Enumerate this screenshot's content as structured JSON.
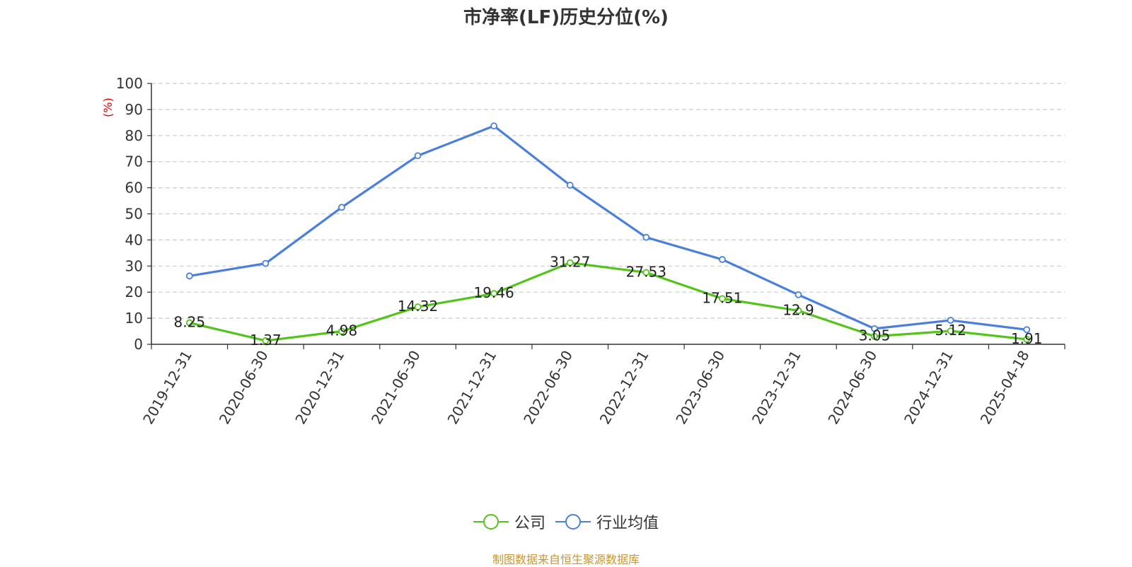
{
  "chart_data": {
    "type": "line",
    "title": "市净率(LF)历史分位(%)",
    "ylabel": "(%)",
    "xlabel": "",
    "ylim": [
      0,
      100
    ],
    "y_ticks": [
      0,
      10,
      20,
      30,
      40,
      50,
      60,
      70,
      80,
      90,
      100
    ],
    "grid": "horizontal-dashed",
    "legend_position": "bottom-center",
    "categories": [
      "2019-12-31",
      "2020-06-30",
      "2020-12-31",
      "2021-06-30",
      "2021-12-31",
      "2022-06-30",
      "2022-12-31",
      "2023-06-30",
      "2023-12-31",
      "2024-06-30",
      "2024-12-31",
      "2025-04-18"
    ],
    "series": [
      {
        "name": "公司",
        "color": "#52c41a",
        "show_labels": true,
        "values": [
          8.25,
          1.37,
          4.98,
          14.32,
          19.46,
          31.27,
          27.53,
          17.51,
          12.9,
          3.05,
          5.12,
          1.91
        ]
      },
      {
        "name": "行业均值",
        "color": "#4a7fdc",
        "show_labels": false,
        "values": [
          26.2,
          31.0,
          52.5,
          72.3,
          83.7,
          61.0,
          41.0,
          32.5,
          19.0,
          6.0,
          9.2,
          5.6
        ]
      }
    ],
    "source": "制图数据来自恒生聚源数据库"
  }
}
